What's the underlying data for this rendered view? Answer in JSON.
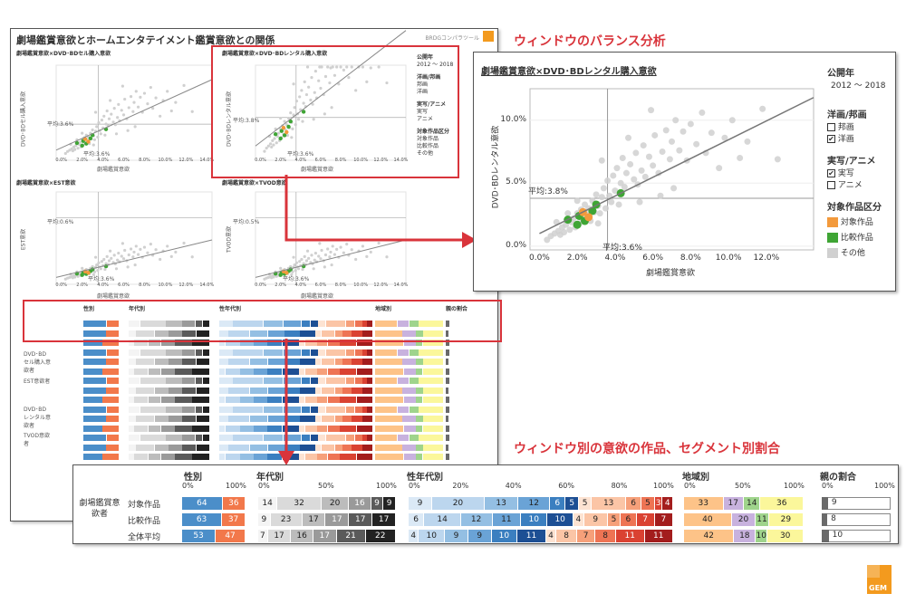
{
  "dashboard": {
    "title": "劇場鑑賞意欲とホームエンタテイメント鑑賞意欲との関係",
    "brand": "BRDGコンパラツール",
    "charts": [
      {
        "title": "劇場鑑賞意欲×DVD･BDセル購入意欲",
        "ylabel": "DVD･BDセル購入意欲",
        "xlabel": "劇場鑑賞意欲",
        "avg_y": "平均:3.6%",
        "avg_x": "平均:3.6%"
      },
      {
        "title": "劇場鑑賞意欲×DVD･BDレンタル購入意欲",
        "ylabel": "DVD･BDレンタル意欲",
        "xlabel": "劇場鑑賞意欲",
        "avg_y": "平均:3.8%",
        "avg_x": "平均:3.6%"
      },
      {
        "title": "劇場鑑賞意欲×EST意欲",
        "ylabel": "EST意欲",
        "xlabel": "劇場鑑賞意欲",
        "avg_y": "平均:0.6%",
        "avg_x": "平均:3.6%"
      },
      {
        "title": "劇場鑑賞意欲×TVOD意欲",
        "ylabel": "TVOD意欲",
        "xlabel": "劇場鑑賞意欲",
        "avg_y": "平均:0.5%",
        "avg_x": "平均:3.6%"
      }
    ],
    "x_ticks": [
      "0.0%",
      "2.0%",
      "4.0%",
      "6.0%",
      "8.0%",
      "10.0%",
      "12.0%",
      "14.0%"
    ],
    "table_rows": [
      "DVD･BDセル購入意欲者",
      "EST意欲者",
      "DVD･BDレンタル意欲者",
      "TVOD意欲者"
    ]
  },
  "headings": {
    "window_balance": "ウィンドウのバランス分析",
    "window_segment": "ウィンドウ別の意欲の作品、セグメント別割合"
  },
  "zoom_chart": {
    "title": "劇場鑑賞意欲×DVD･BDレンタル購入意欲",
    "ylabel": "DVD･BDレンタル意欲",
    "xlabel": "劇場鑑賞意欲",
    "avg_x_label": "平均:3.6%",
    "avg_y_label": "平均:3.8%",
    "x_ticks": [
      "0.0%",
      "2.0%",
      "4.0%",
      "6.0%",
      "8.0%",
      "10.0%",
      "12.0%"
    ],
    "y_ticks": [
      "10.0%",
      "5.0%",
      "0.0%"
    ]
  },
  "legend": {
    "year_title": "公開年",
    "year_range": "2012 ～ 2018",
    "genre_title": "洋画/邦画",
    "genre_items": [
      {
        "label": "邦画",
        "checked": false
      },
      {
        "label": "洋画",
        "checked": true
      }
    ],
    "type_title": "実写/アニメ",
    "type_items": [
      {
        "label": "実写",
        "checked": true
      },
      {
        "label": "アニメ",
        "checked": false
      }
    ],
    "target_title": "対象作品区分",
    "target_items": [
      {
        "label": "対象作品",
        "color": "#f39a3c"
      },
      {
        "label": "比較作品",
        "color": "#3fa535"
      },
      {
        "label": "その他",
        "color": "#d0d0d0"
      }
    ],
    "check_mark": "✔"
  },
  "chart_data": {
    "type": "scatter",
    "title": "劇場鑑賞意欲×DVD･BDレンタル購入意欲",
    "xlabel": "劇場鑑賞意欲",
    "ylabel": "DVD･BDレンタル意欲",
    "xlim": [
      -0.5,
      14.5
    ],
    "ylim": [
      -0.3,
      12.5
    ],
    "avg_x": 3.6,
    "avg_y": 3.8,
    "trend": [
      [
        0.0,
        1.0
      ],
      [
        14.5,
        11.8
      ]
    ],
    "series": [
      {
        "name": "対象作品",
        "color": "#f39a3c",
        "points": [
          [
            2.3,
            2.7
          ],
          [
            2.6,
            2.3
          ]
        ]
      },
      {
        "name": "比較作品",
        "color": "#3fa535",
        "points": [
          [
            1.5,
            2.1
          ],
          [
            2.0,
            1.7
          ],
          [
            2.1,
            2.4
          ],
          [
            2.8,
            2.8
          ],
          [
            3.0,
            3.3
          ],
          [
            4.3,
            4.2
          ],
          [
            2.4,
            2.0
          ]
        ]
      },
      {
        "name": "その他",
        "color": "#d0d0d0",
        "points": [
          [
            0.4,
            0.5
          ],
          [
            0.6,
            0.8
          ],
          [
            0.8,
            1.0
          ],
          [
            1.0,
            1.2
          ],
          [
            1.1,
            0.9
          ],
          [
            1.2,
            1.5
          ],
          [
            1.3,
            1.1
          ],
          [
            1.4,
            1.7
          ],
          [
            1.6,
            1.3
          ],
          [
            1.7,
            1.9
          ],
          [
            1.8,
            2.2
          ],
          [
            1.9,
            1.5
          ],
          [
            2.0,
            2.6
          ],
          [
            2.1,
            1.8
          ],
          [
            2.2,
            2.9
          ],
          [
            2.3,
            2.1
          ],
          [
            2.4,
            3.3
          ],
          [
            2.5,
            2.5
          ],
          [
            2.6,
            3.0
          ],
          [
            2.7,
            2.0
          ],
          [
            2.8,
            3.6
          ],
          [
            2.9,
            2.7
          ],
          [
            3.0,
            4.1
          ],
          [
            3.1,
            3.2
          ],
          [
            3.2,
            2.6
          ],
          [
            3.3,
            3.9
          ],
          [
            3.4,
            4.6
          ],
          [
            3.5,
            3.0
          ],
          [
            3.6,
            5.2
          ],
          [
            3.7,
            4.0
          ],
          [
            3.8,
            3.5
          ],
          [
            3.9,
            5.6
          ],
          [
            4.0,
            4.4
          ],
          [
            4.1,
            6.2
          ],
          [
            4.2,
            3.3
          ],
          [
            4.3,
            5.0
          ],
          [
            4.4,
            7.0
          ],
          [
            4.5,
            4.7
          ],
          [
            4.6,
            5.8
          ],
          [
            4.8,
            6.5
          ],
          [
            5.0,
            5.3
          ],
          [
            5.1,
            7.4
          ],
          [
            5.2,
            4.9
          ],
          [
            5.4,
            6.0
          ],
          [
            5.5,
            8.0
          ],
          [
            5.6,
            5.5
          ],
          [
            5.8,
            7.1
          ],
          [
            6.0,
            6.4
          ],
          [
            6.1,
            8.8
          ],
          [
            6.3,
            5.8
          ],
          [
            6.5,
            7.5
          ],
          [
            6.7,
            9.2
          ],
          [
            6.9,
            6.9
          ],
          [
            7.0,
            8.3
          ],
          [
            7.2,
            10.0
          ],
          [
            7.4,
            7.6
          ],
          [
            7.6,
            9.1
          ],
          [
            7.8,
            6.8
          ],
          [
            8.0,
            9.7
          ],
          [
            8.3,
            8.1
          ],
          [
            8.6,
            10.6
          ],
          [
            8.8,
            7.4
          ],
          [
            9.1,
            9.0
          ],
          [
            9.5,
            6.2
          ],
          [
            9.8,
            8.6
          ],
          [
            10.2,
            10.0
          ],
          [
            10.6,
            7.0
          ],
          [
            11.0,
            8.3
          ],
          [
            11.8,
            10.9
          ],
          [
            12.6,
            6.9
          ],
          [
            5.3,
            3.5
          ],
          [
            6.4,
            4.0
          ],
          [
            7.1,
            4.6
          ],
          [
            3.3,
            6.8
          ],
          [
            4.7,
            8.6
          ],
          [
            5.9,
            10.8
          ],
          [
            2.0,
            3.6
          ],
          [
            1.5,
            2.6
          ],
          [
            0.9,
            1.9
          ],
          [
            3.1,
            1.8
          ]
        ]
      }
    ]
  },
  "seg_table": {
    "row_group_label": "劇場鑑賞意欲者",
    "headers": {
      "gender": "性別",
      "age": "年代別",
      "gender_age": "性年代別",
      "region": "地域別",
      "parent": "親の割合"
    },
    "scale_gender": [
      "0%",
      "100%"
    ],
    "scale_age": [
      "0%",
      "50%",
      "100%"
    ],
    "scale_gender_age": [
      "0%",
      "20%",
      "40%",
      "60%",
      "80%",
      "100%"
    ],
    "scale_region": [
      "0%",
      "50%",
      "100%"
    ],
    "scale_parent": [
      "0%",
      "100%"
    ],
    "rows": [
      {
        "label": "対象作品",
        "gender": [
          64,
          36
        ],
        "age": [
          14,
          32,
          20,
          16,
          9,
          9
        ],
        "gender_age": [
          9,
          20,
          13,
          12,
          6,
          5,
          5,
          13,
          6,
          5,
          3,
          4
        ],
        "region": [
          33,
          17,
          14,
          36
        ],
        "parent": 9
      },
      {
        "label": "比較作品",
        "gender": [
          63,
          37
        ],
        "age": [
          9,
          23,
          17,
          17,
          17,
          17
        ],
        "gender_age": [
          6,
          14,
          12,
          11,
          10,
          10,
          4,
          9,
          5,
          6,
          7,
          7
        ],
        "region": [
          40,
          20,
          11,
          29
        ],
        "parent": 8
      },
      {
        "label": "全体平均",
        "gender": [
          53,
          47
        ],
        "age": [
          7,
          17,
          16,
          17,
          21,
          22
        ],
        "gender_age": [
          4,
          10,
          9,
          9,
          10,
          11,
          4,
          8,
          7,
          8,
          11,
          11
        ],
        "region": [
          42,
          18,
          10,
          30
        ],
        "parent": 10
      }
    ]
  },
  "colors": {
    "accent_red": "#d9343b",
    "gender": [
      "#4b8ec9",
      "#f2784b"
    ],
    "age": [
      "#f4f4f4",
      "#dadada",
      "#bcbcbc",
      "#9a9a9a",
      "#5a5a5a",
      "#222222"
    ],
    "gender_age": [
      "#dbe9f6",
      "#bcd6ee",
      "#94bfe3",
      "#6aa3d6",
      "#3b7fc0",
      "#1d4f94",
      "#fde3d2",
      "#fbc5a6",
      "#f6a07a",
      "#ee7454",
      "#da4232",
      "#a31d1d"
    ],
    "region": [
      "#fdc388",
      "#c8b2de",
      "#9fd48c",
      "#fbf79b"
    ],
    "parent": "#6a6a6a"
  }
}
